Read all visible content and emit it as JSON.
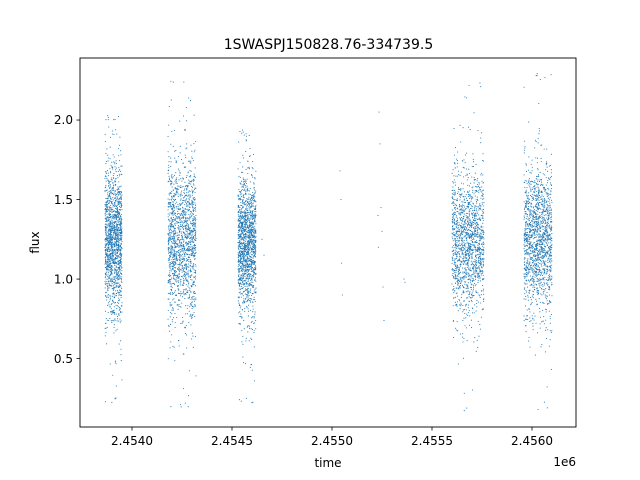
{
  "chart_data": {
    "type": "scatter",
    "title": "1SWASPJ150828.76-334739.5",
    "xlabel": "time",
    "ylabel": "flux",
    "x_offset_label": "1e6",
    "xlim": [
      2453740,
      2456220
    ],
    "ylim": [
      0.07,
      2.39
    ],
    "x_ticks": [
      2454000,
      2454500,
      2455000,
      2455500,
      2456000
    ],
    "x_tick_labels": [
      "2.4540",
      "2.4545",
      "2.4550",
      "2.4555",
      "2.4560"
    ],
    "y_ticks": [
      0.5,
      1.0,
      1.5,
      2.0
    ],
    "y_tick_labels": [
      "0.5",
      "1.0",
      "1.5",
      "2.0"
    ],
    "grid": false,
    "marker_color": "#1f77b4",
    "clusters": [
      {
        "x_start": 2453865,
        "x_end": 2453950,
        "y_center": 1.25,
        "y_spread": 0.22,
        "y_min": 0.2,
        "y_max": 2.05
      },
      {
        "x_start": 2454180,
        "x_end": 2454320,
        "y_center": 1.25,
        "y_spread": 0.24,
        "y_min": 0.18,
        "y_max": 2.25
      },
      {
        "x_start": 2454530,
        "x_end": 2454620,
        "y_center": 1.22,
        "y_spread": 0.2,
        "y_min": 0.22,
        "y_max": 1.95
      },
      {
        "x_start": 2455600,
        "x_end": 2455760,
        "y_center": 1.22,
        "y_spread": 0.22,
        "y_min": 0.17,
        "y_max": 2.25
      },
      {
        "x_start": 2455960,
        "x_end": 2456100,
        "y_center": 1.25,
        "y_spread": 0.22,
        "y_min": 0.17,
        "y_max": 2.3
      }
    ],
    "sparse_points": [
      [
        2454650,
        1.25
      ],
      [
        2454660,
        1.15
      ],
      [
        2455040,
        1.68
      ],
      [
        2455045,
        1.5
      ],
      [
        2455048,
        1.1
      ],
      [
        2455052,
        0.9
      ],
      [
        2455230,
        1.4
      ],
      [
        2455232,
        1.2
      ],
      [
        2455245,
        1.45
      ],
      [
        2455250,
        1.3
      ],
      [
        2455255,
        0.95
      ],
      [
        2455260,
        0.74
      ],
      [
        2455235,
        2.05
      ],
      [
        2455240,
        1.85
      ],
      [
        2455360,
        1.0
      ],
      [
        2455365,
        0.98
      ]
    ]
  }
}
